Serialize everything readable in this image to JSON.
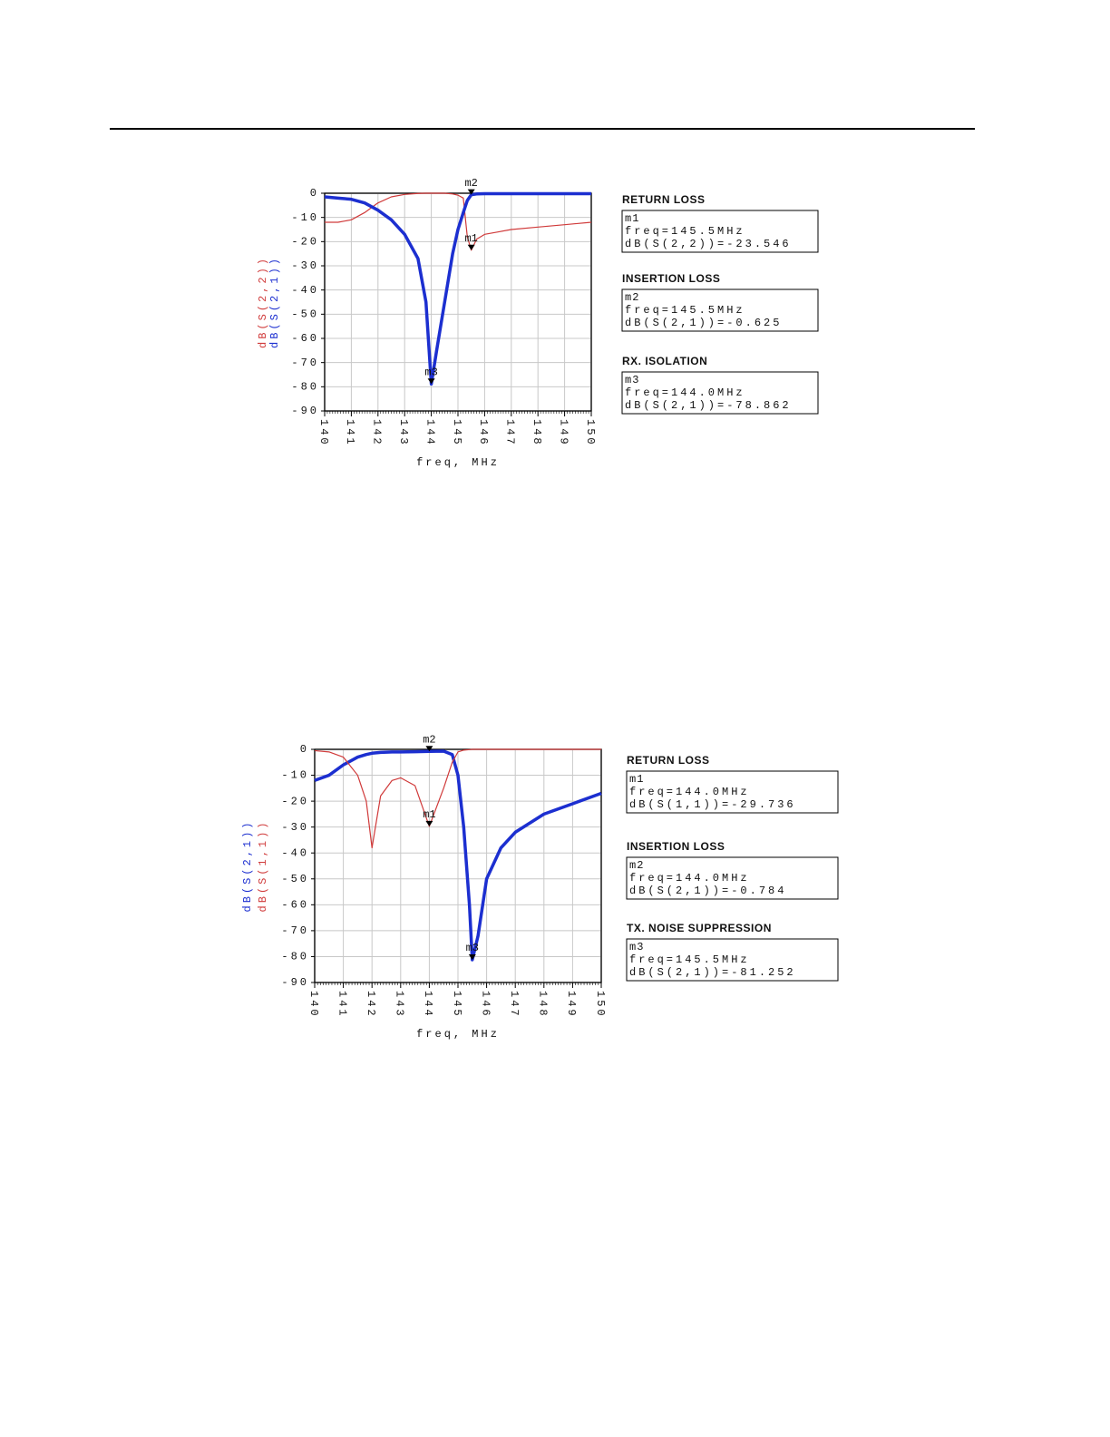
{
  "chart_data": [
    {
      "type": "line",
      "xlabel": "freq, MHz",
      "x": [
        140,
        140.5,
        141,
        141.5,
        142,
        142.5,
        143,
        143.5,
        143.8,
        144,
        144.2,
        144.5,
        144.8,
        145,
        145.2,
        145.35,
        145.5,
        145.7,
        146,
        146.5,
        147,
        148,
        149,
        150
      ],
      "series": [
        {
          "name": "dB(S(2,2))",
          "color": "#d03a3a",
          "values": [
            -12,
            -12,
            -11,
            -8,
            -4,
            -1.5,
            -0.5,
            -0.1,
            0,
            0,
            0,
            0,
            -0.3,
            -0.8,
            -2,
            -18,
            -23.546,
            -19,
            -17,
            -16,
            -15,
            -14,
            -13,
            -12
          ]
        },
        {
          "name": "dB(S(2,1))",
          "color": "#1c2fd0",
          "values": [
            -1.5,
            -2,
            -2.5,
            -4,
            -7,
            -11,
            -17,
            -27,
            -45,
            -78.862,
            -65,
            -45,
            -25,
            -15,
            -8,
            -3,
            -0.625,
            -0.3,
            -0.2,
            -0.2,
            -0.2,
            -0.2,
            -0.2,
            -0.2
          ]
        }
      ],
      "xlim": [
        140,
        150
      ],
      "xticks": [
        140,
        141,
        142,
        143,
        144,
        145,
        146,
        147,
        148,
        149,
        150
      ],
      "ylim": [
        -90,
        0
      ],
      "yticks": [
        0,
        -10,
        -20,
        -30,
        -40,
        -50,
        -60,
        -70,
        -80,
        -90
      ],
      "grid": true,
      "markers": [
        {
          "name": "m1",
          "x": 145.5,
          "y": -23.546,
          "heading": "RETURN LOSS",
          "readout": [
            "freq=145.5MHz",
            "dB(S(2,2))=-23.546"
          ]
        },
        {
          "name": "m2",
          "x": 145.5,
          "y": -0.625,
          "heading": "INSERTION LOSS",
          "readout": [
            "freq=145.5MHz",
            "dB(S(2,1))=-0.625"
          ]
        },
        {
          "name": "m3",
          "x": 144,
          "y": -78.862,
          "heading": "RX. ISOLATION",
          "readout": [
            "freq=144.0MHz",
            "dB(S(2,1))=-78.862"
          ]
        }
      ]
    },
    {
      "type": "line",
      "xlabel": "freq, MHz",
      "x": [
        140,
        140.5,
        141,
        141.5,
        141.8,
        142,
        142.3,
        142.7,
        143,
        143.5,
        144,
        144.5,
        144.8,
        145,
        145.2,
        145.4,
        145.5,
        145.7,
        146,
        146.5,
        147,
        148,
        149,
        150
      ],
      "series": [
        {
          "name": "dB(S(2,1))",
          "color": "#1c2fd0",
          "values": [
            -12,
            -10,
            -6,
            -3,
            -2,
            -1.5,
            -1.2,
            -1,
            -1,
            -0.9,
            -0.784,
            -0.7,
            -2,
            -10,
            -30,
            -60,
            -81.252,
            -72,
            -50,
            -38,
            -32,
            -25,
            -21,
            -17
          ]
        },
        {
          "name": "dB(S(1,1))",
          "color": "#d03a3a",
          "values": [
            -0.5,
            -1,
            -3,
            -10,
            -20,
            -38,
            -18,
            -12,
            -11,
            -14,
            -29.736,
            -15,
            -5,
            -1,
            -0.3,
            -0.1,
            0,
            0,
            0,
            0,
            0,
            0,
            0,
            0
          ]
        }
      ],
      "xlim": [
        140,
        150
      ],
      "xticks": [
        140,
        141,
        142,
        143,
        144,
        145,
        146,
        147,
        148,
        149,
        150
      ],
      "ylim": [
        -90,
        0
      ],
      "yticks": [
        0,
        -10,
        -20,
        -30,
        -40,
        -50,
        -60,
        -70,
        -80,
        -90
      ],
      "grid": true,
      "markers": [
        {
          "name": "m1",
          "x": 144,
          "y": -29.736,
          "heading": "RETURN LOSS",
          "readout": [
            "freq=144.0MHz",
            "dB(S(1,1))=-29.736"
          ]
        },
        {
          "name": "m2",
          "x": 144,
          "y": -0.784,
          "heading": "INSERTION LOSS",
          "readout": [
            "freq=144.0MHz",
            "dB(S(2,1))=-0.784"
          ]
        },
        {
          "name": "m3",
          "x": 145.5,
          "y": -81.252,
          "heading": "TX. NOISE SUPPRESSION",
          "readout": [
            "freq=145.5MHz",
            "dB(S(2,1))=-81.252"
          ]
        }
      ]
    }
  ]
}
